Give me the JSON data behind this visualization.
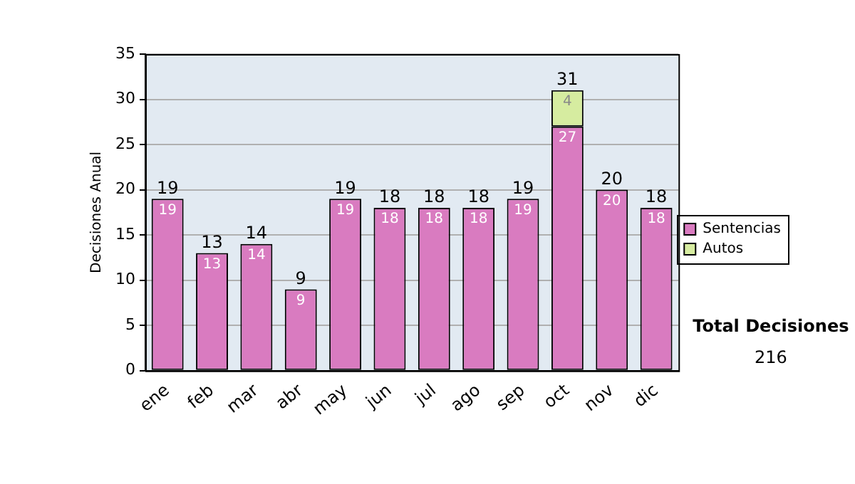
{
  "chart_data": {
    "type": "bar",
    "stacked": true,
    "ylabel": "Decisiones Anual",
    "categories": [
      "ene",
      "feb",
      "mar",
      "abr",
      "may",
      "jun",
      "jul",
      "ago",
      "sep",
      "oct",
      "nov",
      "dic"
    ],
    "series": [
      {
        "name": "Sentencias",
        "color": "#d97bc0",
        "values": [
          19,
          13,
          14,
          9,
          19,
          18,
          18,
          18,
          19,
          27,
          20,
          18
        ]
      },
      {
        "name": "Autos",
        "color": "#d6eca0",
        "values": [
          null,
          null,
          null,
          null,
          null,
          null,
          null,
          null,
          null,
          4,
          null,
          null
        ]
      }
    ],
    "totals": [
      "19",
      "13",
      "14",
      "9",
      "19",
      "18",
      "18",
      "18",
      "19",
      "31",
      "20",
      "18"
    ],
    "data_labels": true,
    "ylim": [
      0,
      35
    ],
    "yticks": [
      0,
      5,
      10,
      15,
      20,
      25,
      30,
      35
    ],
    "grid": "y",
    "legend": "right",
    "annotations": [
      "Total Decisiones",
      "216"
    ]
  }
}
